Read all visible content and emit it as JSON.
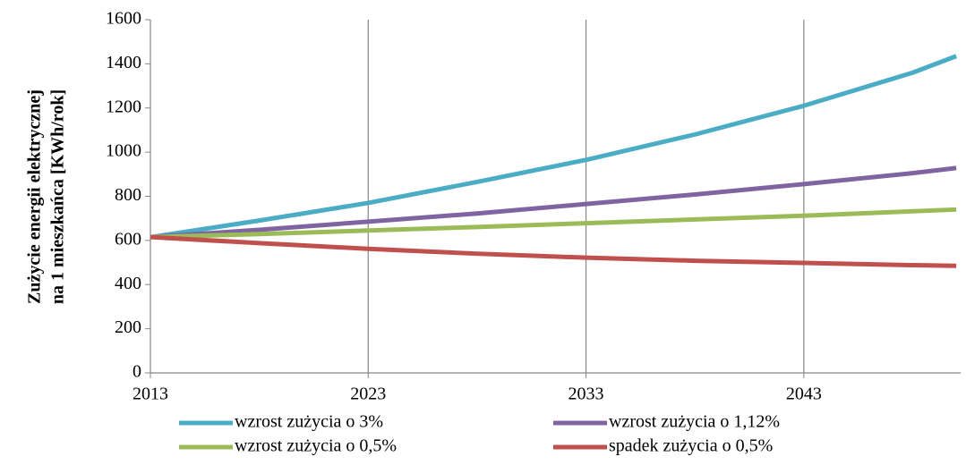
{
  "chart_data": {
    "type": "line",
    "y_label": [
      "Zużycie energii elektrycznej",
      "na 1 mieszkańca [KWh/rok]"
    ],
    "x": [
      2013,
      2018,
      2023,
      2028,
      2033,
      2038,
      2043,
      2048,
      2050
    ],
    "series": [
      {
        "name": "wzrost zużycia o 3%",
        "color": "#4bacc6",
        "values": [
          615,
          690,
          770,
          865,
          965,
          1080,
          1210,
          1360,
          1435
        ]
      },
      {
        "name": "wzrost zużycia o 1,12%",
        "color": "#8064a2",
        "values": [
          615,
          648,
          685,
          722,
          765,
          808,
          855,
          905,
          928
        ]
      },
      {
        "name": "wzrost zużycia o 0,5%",
        "color": "#9bbb59",
        "values": [
          615,
          629,
          645,
          661,
          678,
          695,
          712,
          732,
          740
        ]
      },
      {
        "name": "spadek zużycia o 0,5%",
        "color": "#c0504d",
        "values": [
          615,
          588,
          562,
          540,
          522,
          508,
          498,
          488,
          485
        ]
      }
    ],
    "xlim": [
      2013,
      2050.2
    ],
    "xticks": [
      2013,
      2023,
      2033,
      2043
    ],
    "ylim": [
      0,
      1600
    ],
    "yticks": [
      0,
      200,
      400,
      600,
      800,
      1000,
      1200,
      1400,
      1600
    ],
    "grid": "x",
    "legend": "bottom"
  }
}
